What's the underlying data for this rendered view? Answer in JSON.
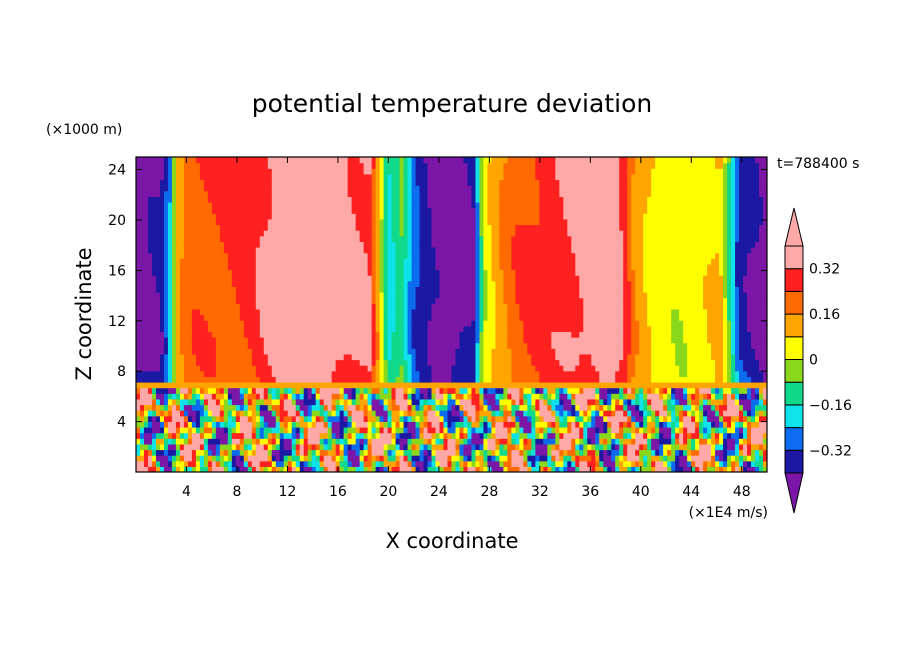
{
  "chart_data": {
    "type": "heatmap",
    "title": "potential temperature deviation",
    "xlabel": "X coordinate",
    "ylabel": "Z coordinate",
    "x_unit": "(×1E4 m/s)",
    "y_unit": "(×1000 m)",
    "time_label": "t=788400 s",
    "xlim": [
      0,
      50
    ],
    "ylim": [
      0,
      25
    ],
    "x_ticks": [
      4,
      8,
      12,
      16,
      20,
      24,
      28,
      32,
      36,
      40,
      44,
      48
    ],
    "x_tick_labels": [
      "4",
      "8",
      "12",
      "16",
      "20",
      "24",
      "28",
      "32",
      "36",
      "40",
      "44",
      "48"
    ],
    "y_ticks": [
      4,
      8,
      12,
      16,
      20,
      24
    ],
    "y_tick_labels": [
      "4",
      "8",
      "12",
      "16",
      "20",
      "24"
    ],
    "levels": [
      -0.4,
      -0.32,
      -0.24,
      -0.16,
      -0.08,
      0,
      0.08,
      0.16,
      0.24,
      0.32,
      0.4
    ],
    "colorbar_tick_values": [
      0.32,
      0.16,
      0,
      -0.16,
      -0.32
    ],
    "colorbar_tick_labels": [
      "0.32",
      "0.16",
      "0",
      "−0.16",
      "−0.32"
    ],
    "colors": [
      "#7b16a6",
      "#1b19a3",
      "#0c6cf0",
      "#0fe2e8",
      "#10d98c",
      "#8ad81c",
      "#ffff00",
      "#ffa500",
      "#ff6b00",
      "#ff2020",
      "#ffa8a8"
    ],
    "profiles": [
      {
        "x": 0.0,
        "value": -0.45
      },
      {
        "x": 2.0,
        "value": -0.4
      },
      {
        "x": 2.8,
        "value": -0.2
      },
      {
        "x": 3.2,
        "value": 0.1
      },
      {
        "x": 4.0,
        "value": 0.2
      },
      {
        "x": 5.0,
        "value": 0.23
      },
      {
        "x": 7.0,
        "value": 0.24
      },
      {
        "x": 9.0,
        "value": 0.27
      },
      {
        "x": 10.5,
        "value": 0.34
      },
      {
        "x": 11.5,
        "value": 0.38
      },
      {
        "x": 13.0,
        "value": 0.42
      },
      {
        "x": 15.0,
        "value": 0.4
      },
      {
        "x": 17.0,
        "value": 0.34
      },
      {
        "x": 18.5,
        "value": 0.33
      },
      {
        "x": 19.2,
        "value": 0.12
      },
      {
        "x": 20.0,
        "value": -0.2
      },
      {
        "x": 21.0,
        "value": -0.08
      },
      {
        "x": 22.0,
        "value": -0.3
      },
      {
        "x": 23.5,
        "value": -0.42
      },
      {
        "x": 25.0,
        "value": -0.45
      },
      {
        "x": 26.8,
        "value": -0.4
      },
      {
        "x": 27.5,
        "value": 0.0
      },
      {
        "x": 28.5,
        "value": 0.12
      },
      {
        "x": 30.0,
        "value": 0.22
      },
      {
        "x": 32.0,
        "value": 0.27
      },
      {
        "x": 34.0,
        "value": 0.32
      },
      {
        "x": 36.0,
        "value": 0.36
      },
      {
        "x": 37.5,
        "value": 0.42
      },
      {
        "x": 38.6,
        "value": 0.32
      },
      {
        "x": 39.5,
        "value": 0.15
      },
      {
        "x": 41.0,
        "value": 0.05
      },
      {
        "x": 43.0,
        "value": 0.02
      },
      {
        "x": 45.0,
        "value": 0.05
      },
      {
        "x": 46.3,
        "value": 0.1
      },
      {
        "x": 47.0,
        "value": -0.1
      },
      {
        "x": 47.8,
        "value": -0.35
      },
      {
        "x": 50.0,
        "value": -0.45
      }
    ]
  }
}
